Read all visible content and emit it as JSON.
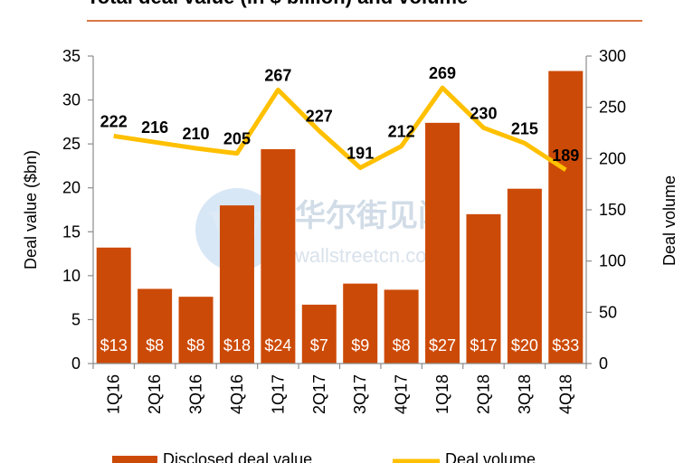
{
  "chart_data": {
    "type": "bar",
    "title": "Total deal value (in $ billion) and volume",
    "categories": [
      "1Q16",
      "2Q16",
      "3Q16",
      "4Q16",
      "1Q17",
      "2Q17",
      "3Q17",
      "4Q17",
      "1Q18",
      "2Q18",
      "3Q18",
      "4Q18"
    ],
    "series": [
      {
        "name": "Disclosed deal value",
        "type": "bar",
        "axis": "left",
        "values": [
          13.2,
          8.5,
          7.6,
          18.0,
          24.4,
          6.7,
          9.1,
          8.4,
          27.4,
          17.0,
          19.9,
          33.3
        ],
        "labels": [
          "$13",
          "$8",
          "$8",
          "$18",
          "$24",
          "$7",
          "$9",
          "$8",
          "$27",
          "$17",
          "$20",
          "$33"
        ],
        "color": "#cc4a07"
      },
      {
        "name": "Deal volume",
        "type": "line",
        "axis": "right",
        "values": [
          222,
          216,
          210,
          205,
          267,
          227,
          191,
          212,
          269,
          230,
          215,
          189
        ],
        "labels": [
          "222",
          "216",
          "210",
          "205",
          "267",
          "227",
          "191",
          "212",
          "269",
          "230",
          "215",
          "189"
        ],
        "color": "#ffc000"
      }
    ],
    "ylabel": "Deal value ($bn)",
    "y2label": "Deal volume",
    "ylim": [
      0,
      35
    ],
    "y2lim": [
      0,
      300
    ],
    "yticks": [
      "0",
      "5",
      "10",
      "15",
      "20",
      "25",
      "30",
      "35"
    ],
    "y2ticks": [
      "0",
      "50",
      "100",
      "150",
      "200",
      "250",
      "300"
    ],
    "grid": false,
    "legend_position": "bottom",
    "title_rule_color": "#cc4a07"
  },
  "watermark": {
    "text": "华尔街见闻",
    "sub": "wallstreetcn.com"
  }
}
